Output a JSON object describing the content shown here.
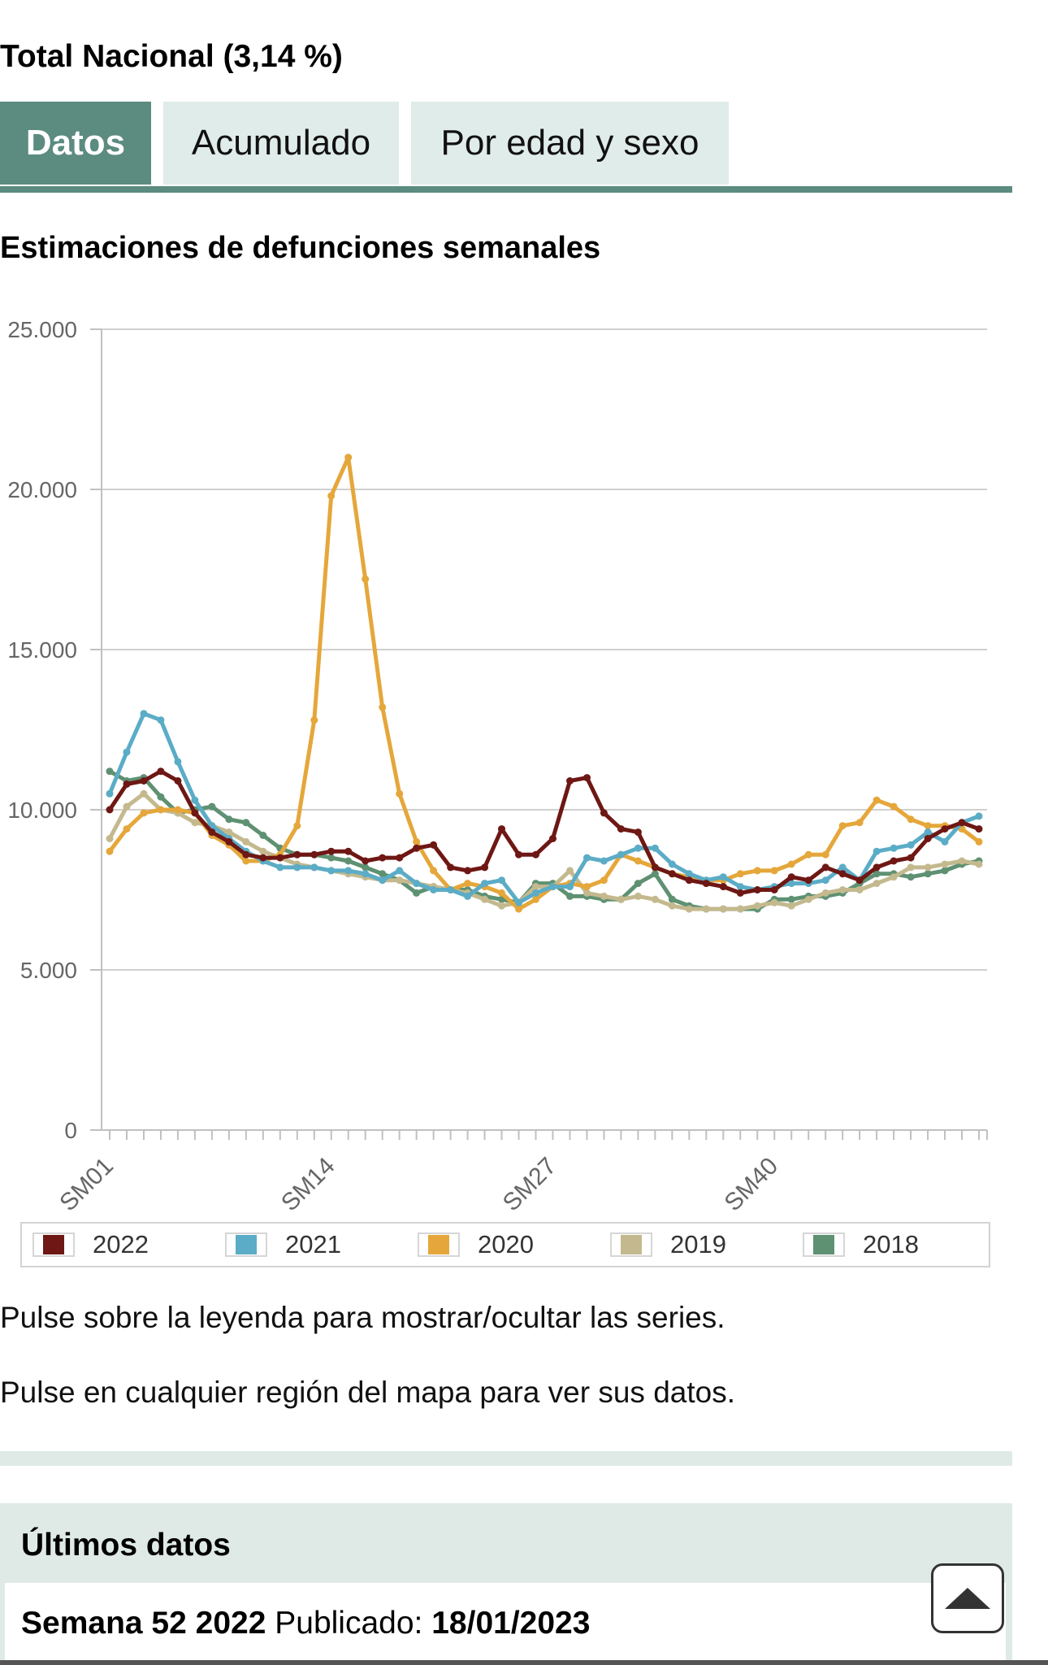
{
  "header": {
    "title": "Total Nacional (3,14 %)"
  },
  "tabs": [
    {
      "label": "Datos",
      "active": true
    },
    {
      "label": "Acumulado",
      "active": false
    },
    {
      "label": "Por edad y sexo",
      "active": false
    }
  ],
  "chart_title": "Estimaciones de defunciones semanales",
  "colors": {
    "accent": "#5c8b80",
    "band": "#dfeae7",
    "grid": "#d0d0d0"
  },
  "chart_data": {
    "type": "line",
    "title": "Estimaciones de defunciones semanales",
    "xlabel": "",
    "ylabel": "",
    "ylim": [
      0,
      25000
    ],
    "y_ticks": [
      0,
      5000,
      10000,
      15000,
      20000,
      25000
    ],
    "y_tick_labels": [
      "0",
      "5.000",
      "10.000",
      "15.000",
      "20.000",
      "25.000"
    ],
    "x_tick_labels": [
      "SM01",
      "SM14",
      "SM27",
      "SM40"
    ],
    "x_tick_positions": [
      1,
      14,
      27,
      40
    ],
    "x": [
      1,
      2,
      3,
      4,
      5,
      6,
      7,
      8,
      9,
      10,
      11,
      12,
      13,
      14,
      15,
      16,
      17,
      18,
      19,
      20,
      21,
      22,
      23,
      24,
      25,
      26,
      27,
      28,
      29,
      30,
      31,
      32,
      33,
      34,
      35,
      36,
      37,
      38,
      39,
      40,
      41,
      42,
      43,
      44,
      45,
      46,
      47,
      48,
      49,
      50,
      51,
      52
    ],
    "series": [
      {
        "name": "2022",
        "color": "#6e1714",
        "values": [
          10000,
          10800,
          10900,
          11200,
          10900,
          9900,
          9300,
          9000,
          8600,
          8500,
          8500,
          8600,
          8600,
          8700,
          8700,
          8400,
          8500,
          8500,
          8800,
          8900,
          8200,
          8100,
          8200,
          9400,
          8600,
          8600,
          9100,
          10900,
          11000,
          9900,
          9400,
          9300,
          8200,
          8000,
          7800,
          7700,
          7600,
          7400,
          7500,
          7500,
          7900,
          7800,
          8200,
          8000,
          7800,
          8200,
          8400,
          8500,
          9100,
          9400,
          9600,
          9400
        ]
      },
      {
        "name": "2021",
        "color": "#5bacc6",
        "values": [
          10500,
          11800,
          13000,
          12800,
          11500,
          10300,
          9500,
          9100,
          8700,
          8400,
          8200,
          8200,
          8200,
          8100,
          8100,
          8000,
          7800,
          8100,
          7700,
          7500,
          7500,
          7300,
          7700,
          7800,
          7100,
          7400,
          7600,
          7600,
          8500,
          8400,
          8600,
          8800,
          8800,
          8300,
          8000,
          7800,
          7900,
          7600,
          7500,
          7600,
          7700,
          7700,
          7800,
          8200,
          7800,
          8700,
          8800,
          8900,
          9300,
          9000,
          9600,
          9800
        ]
      },
      {
        "name": "2020",
        "color": "#e5a73b",
        "values": [
          8700,
          9400,
          9900,
          10000,
          10000,
          9900,
          9200,
          8900,
          8400,
          8400,
          8600,
          9500,
          12800,
          19800,
          21000,
          17200,
          13200,
          10500,
          9000,
          8100,
          7500,
          7700,
          7600,
          7400,
          6900,
          7200,
          7600,
          7700,
          7600,
          7800,
          8600,
          8400,
          8200,
          8000,
          7900,
          7800,
          7800,
          8000,
          8100,
          8100,
          8300,
          8600,
          8600,
          9500,
          9600,
          10300,
          10100,
          9700,
          9500,
          9500,
          9400,
          9000
        ]
      },
      {
        "name": "2019",
        "color": "#c4b98e",
        "values": [
          9100,
          10100,
          10500,
          10000,
          9900,
          9600,
          9500,
          9300,
          9000,
          8700,
          8500,
          8300,
          8200,
          8100,
          8000,
          7900,
          7800,
          7800,
          7700,
          7600,
          7500,
          7400,
          7200,
          7000,
          7100,
          7600,
          7600,
          8100,
          7400,
          7300,
          7200,
          7300,
          7200,
          7000,
          6900,
          6900,
          6900,
          6900,
          7000,
          7100,
          7000,
          7200,
          7400,
          7500,
          7500,
          7700,
          7900,
          8200,
          8200,
          8300,
          8400,
          8300
        ]
      },
      {
        "name": "2018",
        "color": "#5e9172",
        "values": [
          11200,
          10900,
          11000,
          10400,
          9900,
          10000,
          10100,
          9700,
          9600,
          9200,
          8800,
          8600,
          8600,
          8500,
          8400,
          8200,
          8000,
          7800,
          7400,
          7600,
          7500,
          7500,
          7300,
          7200,
          7100,
          7700,
          7700,
          7300,
          7300,
          7200,
          7200,
          7700,
          8000,
          7200,
          7000,
          6900,
          6900,
          6900,
          6900,
          7200,
          7200,
          7300,
          7300,
          7400,
          7700,
          8000,
          8000,
          7900,
          8000,
          8100,
          8300,
          8400
        ]
      }
    ]
  },
  "legend": {
    "items": [
      "2022",
      "2021",
      "2020",
      "2019",
      "2018"
    ]
  },
  "hints": [
    "Pulse sobre la leyenda para mostrar/ocultar las series.",
    "Pulse en cualquier región del mapa para ver sus datos."
  ],
  "latest": {
    "title": "Últimos datos",
    "week": "Semana 52 2022",
    "published_label": "Publicado:",
    "published_date": "18/01/2023"
  }
}
